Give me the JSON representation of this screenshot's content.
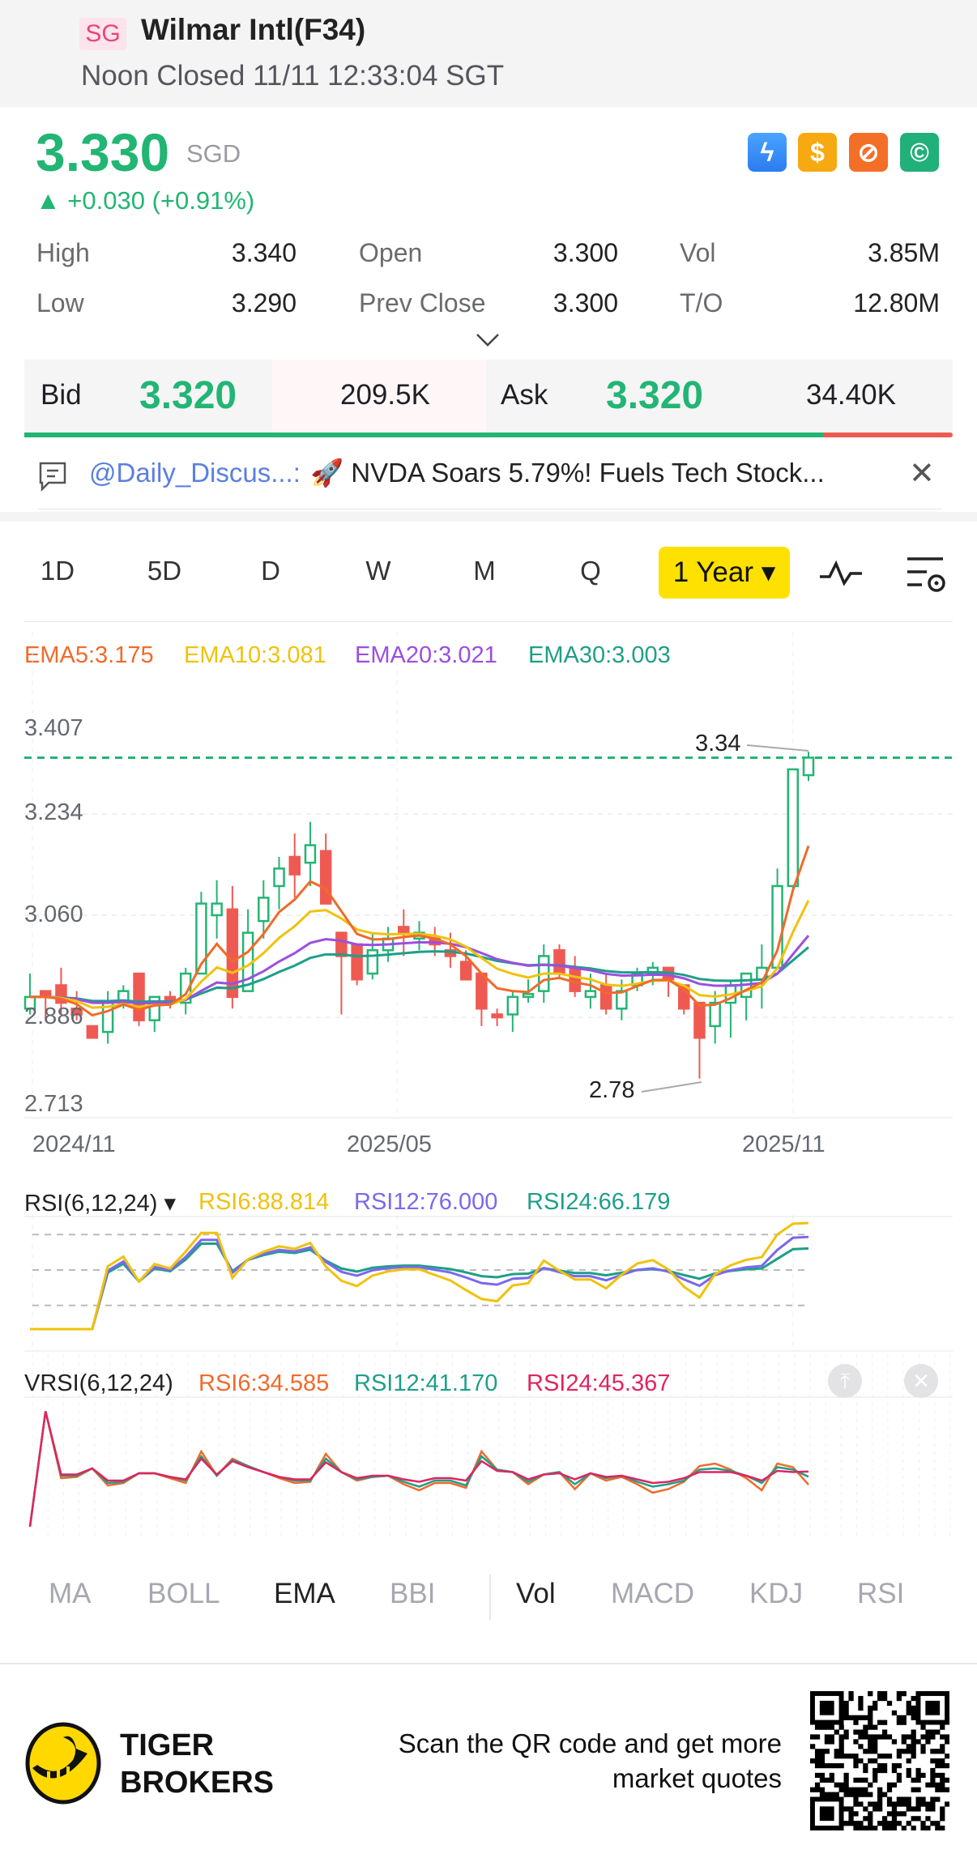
{
  "header": {
    "market_badge": "SG",
    "title": "Wilmar Intl(F34)",
    "status": "Noon Closed 11/11 12:33:04 SGT"
  },
  "quote": {
    "price": "3.330",
    "currency": "SGD",
    "change": "+0.030 (+0.91%)",
    "up_color": "#22b573",
    "down_color": "#ee5a52"
  },
  "feature_icons": [
    "lightning-level1-icon",
    "dollar-icon",
    "no-short-icon",
    "cash-hand-icon"
  ],
  "stats": [
    {
      "label": "High",
      "value": "3.340"
    },
    {
      "label": "Open",
      "value": "3.300"
    },
    {
      "label": "Vol",
      "value": "3.85M"
    },
    {
      "label": "Low",
      "value": "3.290"
    },
    {
      "label": "Prev Close",
      "value": "3.300"
    },
    {
      "label": "T/O",
      "value": "12.80M"
    }
  ],
  "bidask": {
    "bid_label": "Bid",
    "bid_price": "3.320",
    "bid_size": "209.5K",
    "ask_label": "Ask",
    "ask_price": "3.320",
    "ask_size": "34.40K",
    "bid_ratio": 0.86
  },
  "news": {
    "user": "@Daily_Discus...:",
    "text": "🚀 NVDA Soars 5.79%! Fuels Tech Stock..."
  },
  "timeframes": [
    "1D",
    "5D",
    "D",
    "W",
    "M",
    "Q"
  ],
  "selected_timeframe": "1 Year ▾",
  "indicator_tabs": {
    "main": [
      "MA",
      "BOLL",
      "EMA",
      "BBI"
    ],
    "sub": [
      "Vol",
      "MACD",
      "KDJ",
      "RSI"
    ],
    "active": [
      "EMA",
      "Vol"
    ]
  },
  "footer": {
    "brand_line1": "TIGER",
    "brand_line2": "BROKERS",
    "cta_line1": "Scan the QR code and get more",
    "cta_line2": "market quotes"
  },
  "chart_data": [
    {
      "type": "candlestick",
      "ema_legend": [
        {
          "label": "EMA5:3.175",
          "color": "#f06a2a"
        },
        {
          "label": "EMA10:3.081",
          "color": "#f0c20c"
        },
        {
          "label": "EMA20:3.021",
          "color": "#9b4fe0"
        },
        {
          "label": "EMA30:3.003",
          "color": "#1e9f88"
        }
      ],
      "yticks": [
        "3.407",
        "3.234",
        "3.060",
        "2.886",
        "2.713"
      ],
      "ylim": [
        2.713,
        3.407
      ],
      "xticks": [
        "2024/11",
        "2025/05",
        "2025/11"
      ],
      "last_price_line": 3.33,
      "max_label": "3.34",
      "min_label": "2.78",
      "ohlc": [
        [
          2.9,
          2.96,
          2.89,
          2.92
        ],
        [
          2.93,
          2.93,
          2.88,
          2.92
        ],
        [
          2.94,
          2.97,
          2.89,
          2.91
        ],
        [
          2.9,
          2.93,
          2.88,
          2.89
        ],
        [
          2.87,
          2.87,
          2.85,
          2.85
        ],
        [
          2.86,
          2.93,
          2.84,
          2.91
        ],
        [
          2.91,
          2.94,
          2.9,
          2.93
        ],
        [
          2.96,
          2.96,
          2.87,
          2.88
        ],
        [
          2.88,
          2.92,
          2.86,
          2.92
        ],
        [
          2.92,
          2.93,
          2.9,
          2.91
        ],
        [
          2.91,
          2.97,
          2.89,
          2.96
        ],
        [
          2.96,
          3.1,
          2.96,
          3.08
        ],
        [
          3.06,
          3.12,
          3.02,
          3.08
        ],
        [
          3.07,
          3.11,
          2.9,
          2.92
        ],
        [
          2.93,
          3.07,
          2.93,
          3.03
        ],
        [
          3.05,
          3.12,
          3.02,
          3.09
        ],
        [
          3.11,
          3.16,
          3.07,
          3.14
        ],
        [
          3.16,
          3.2,
          3.09,
          3.13
        ],
        [
          3.15,
          3.22,
          3.11,
          3.18
        ],
        [
          3.17,
          3.2,
          3.08,
          3.08
        ],
        [
          3.03,
          3.03,
          2.89,
          2.99
        ],
        [
          3.01,
          3.01,
          2.94,
          2.95
        ],
        [
          2.96,
          3.03,
          2.95,
          3.0
        ],
        [
          3.0,
          3.04,
          2.98,
          3.02
        ],
        [
          3.04,
          3.07,
          2.99,
          3.03
        ],
        [
          3.02,
          3.05,
          3.0,
          3.03
        ],
        [
          3.02,
          3.04,
          2.99,
          3.01
        ],
        [
          3.0,
          3.03,
          2.97,
          2.99
        ],
        [
          2.98,
          3.0,
          2.95,
          2.95
        ],
        [
          2.96,
          2.96,
          2.87,
          2.9
        ],
        [
          2.89,
          2.9,
          2.87,
          2.885
        ],
        [
          2.89,
          2.93,
          2.86,
          2.92
        ],
        [
          2.92,
          2.95,
          2.91,
          2.925
        ],
        [
          2.93,
          3.01,
          2.91,
          2.99
        ],
        [
          3.0,
          3.01,
          2.95,
          2.96
        ],
        [
          2.97,
          2.99,
          2.92,
          2.93
        ],
        [
          2.92,
          2.96,
          2.9,
          2.93
        ],
        [
          2.94,
          2.96,
          2.89,
          2.9
        ],
        [
          2.9,
          2.95,
          2.88,
          2.93
        ],
        [
          2.94,
          2.97,
          2.93,
          2.96
        ],
        [
          2.96,
          2.98,
          2.94,
          2.97
        ],
        [
          2.97,
          2.97,
          2.92,
          2.95
        ],
        [
          2.94,
          2.94,
          2.89,
          2.9
        ],
        [
          2.91,
          2.91,
          2.78,
          2.85
        ],
        [
          2.87,
          2.93,
          2.84,
          2.91
        ],
        [
          2.91,
          2.95,
          2.85,
          2.94
        ],
        [
          2.92,
          2.96,
          2.88,
          2.96
        ],
        [
          2.95,
          3.01,
          2.9,
          2.97
        ],
        [
          2.97,
          3.14,
          2.97,
          3.11
        ],
        [
          3.11,
          3.31,
          3.1,
          3.31
        ],
        [
          3.3,
          3.34,
          3.29,
          3.33
        ]
      ]
    },
    {
      "type": "line",
      "title": "RSI(6,12,24) ▾",
      "legend": [
        {
          "label": "RSI6:88.814",
          "color": "#f0c20c"
        },
        {
          "label": "RSI12:76.000",
          "color": "#7b68ee"
        },
        {
          "label": "RSI24:66.179",
          "color": "#1e9f88"
        }
      ],
      "ylim": [
        0,
        100
      ],
      "reference_lines": [
        20,
        50,
        80
      ]
    },
    {
      "type": "line",
      "title": "VRSI(6,12,24)",
      "legend": [
        {
          "label": "RSI6:34.585",
          "color": "#f06a2a"
        },
        {
          "label": "RSI12:41.170",
          "color": "#1e9f88"
        },
        {
          "label": "RSI24:45.367",
          "color": "#e0245e"
        }
      ],
      "ylim": [
        0,
        100
      ],
      "series": [
        {
          "name": "RSI6",
          "values": [
            0,
            95,
            40,
            41,
            48,
            34,
            36,
            44,
            44,
            40,
            36,
            62,
            42,
            56,
            50,
            45,
            40,
            36,
            37,
            60,
            45,
            38,
            41,
            42,
            35,
            30,
            36,
            36,
            32,
            62,
            47,
            45,
            35,
            43,
            45,
            31,
            44,
            38,
            41,
            35,
            28,
            31,
            37,
            50,
            52,
            47,
            40,
            30,
            52,
            49,
            34.6
          ]
        },
        {
          "name": "RSI12",
          "values": [
            0,
            95,
            42,
            42,
            48,
            36,
            37,
            44,
            44,
            41,
            38,
            58,
            42,
            55,
            50,
            45,
            41,
            38,
            38,
            56,
            45,
            39,
            41,
            42,
            37,
            33,
            38,
            38,
            34,
            58,
            47,
            45,
            37,
            43,
            45,
            35,
            44,
            40,
            42,
            37,
            33,
            35,
            38,
            47,
            48,
            46,
            42,
            36,
            49,
            47,
            41.2
          ]
        },
        {
          "name": "RSI24",
          "values": [
            0,
            95,
            43,
            43,
            48,
            38,
            38,
            44,
            44,
            41,
            39,
            56,
            43,
            54,
            49,
            45,
            41,
            39,
            39,
            53,
            45,
            40,
            42,
            42,
            39,
            37,
            40,
            40,
            38,
            54,
            46,
            45,
            39,
            43,
            44,
            39,
            44,
            41,
            42,
            39,
            36,
            37,
            40,
            45,
            45,
            45,
            42,
            38,
            46,
            45,
            45.4
          ]
        }
      ]
    }
  ]
}
